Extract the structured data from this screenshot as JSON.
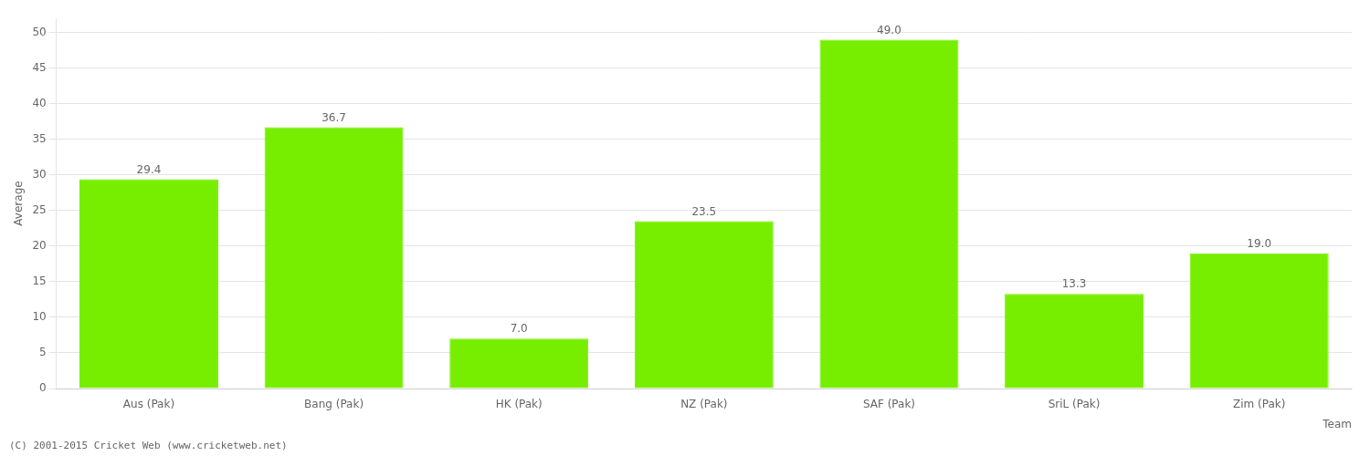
{
  "chart_data": {
    "type": "bar",
    "categories": [
      "Aus (Pak)",
      "Bang (Pak)",
      "HK (Pak)",
      "NZ (Pak)",
      "SAF (Pak)",
      "SriL (Pak)",
      "Zim (Pak)"
    ],
    "values": [
      29.4,
      36.7,
      7.0,
      23.5,
      49.0,
      13.3,
      19.0
    ],
    "value_labels": [
      "29.4",
      "36.7",
      "7.0",
      "23.5",
      "49.0",
      "13.3",
      "19.0"
    ],
    "data_labels": true,
    "color": "#77ee00",
    "xlabel": "Team",
    "ylabel": "Average",
    "ylim": [
      0,
      52
    ],
    "yticks": [
      0,
      5,
      10,
      15,
      20,
      25,
      30,
      35,
      40,
      45,
      50
    ],
    "grid": true,
    "legend": false,
    "annotations": [
      "(C) 2001-2015 Cricket Web (www.cricketweb.net)"
    ]
  }
}
